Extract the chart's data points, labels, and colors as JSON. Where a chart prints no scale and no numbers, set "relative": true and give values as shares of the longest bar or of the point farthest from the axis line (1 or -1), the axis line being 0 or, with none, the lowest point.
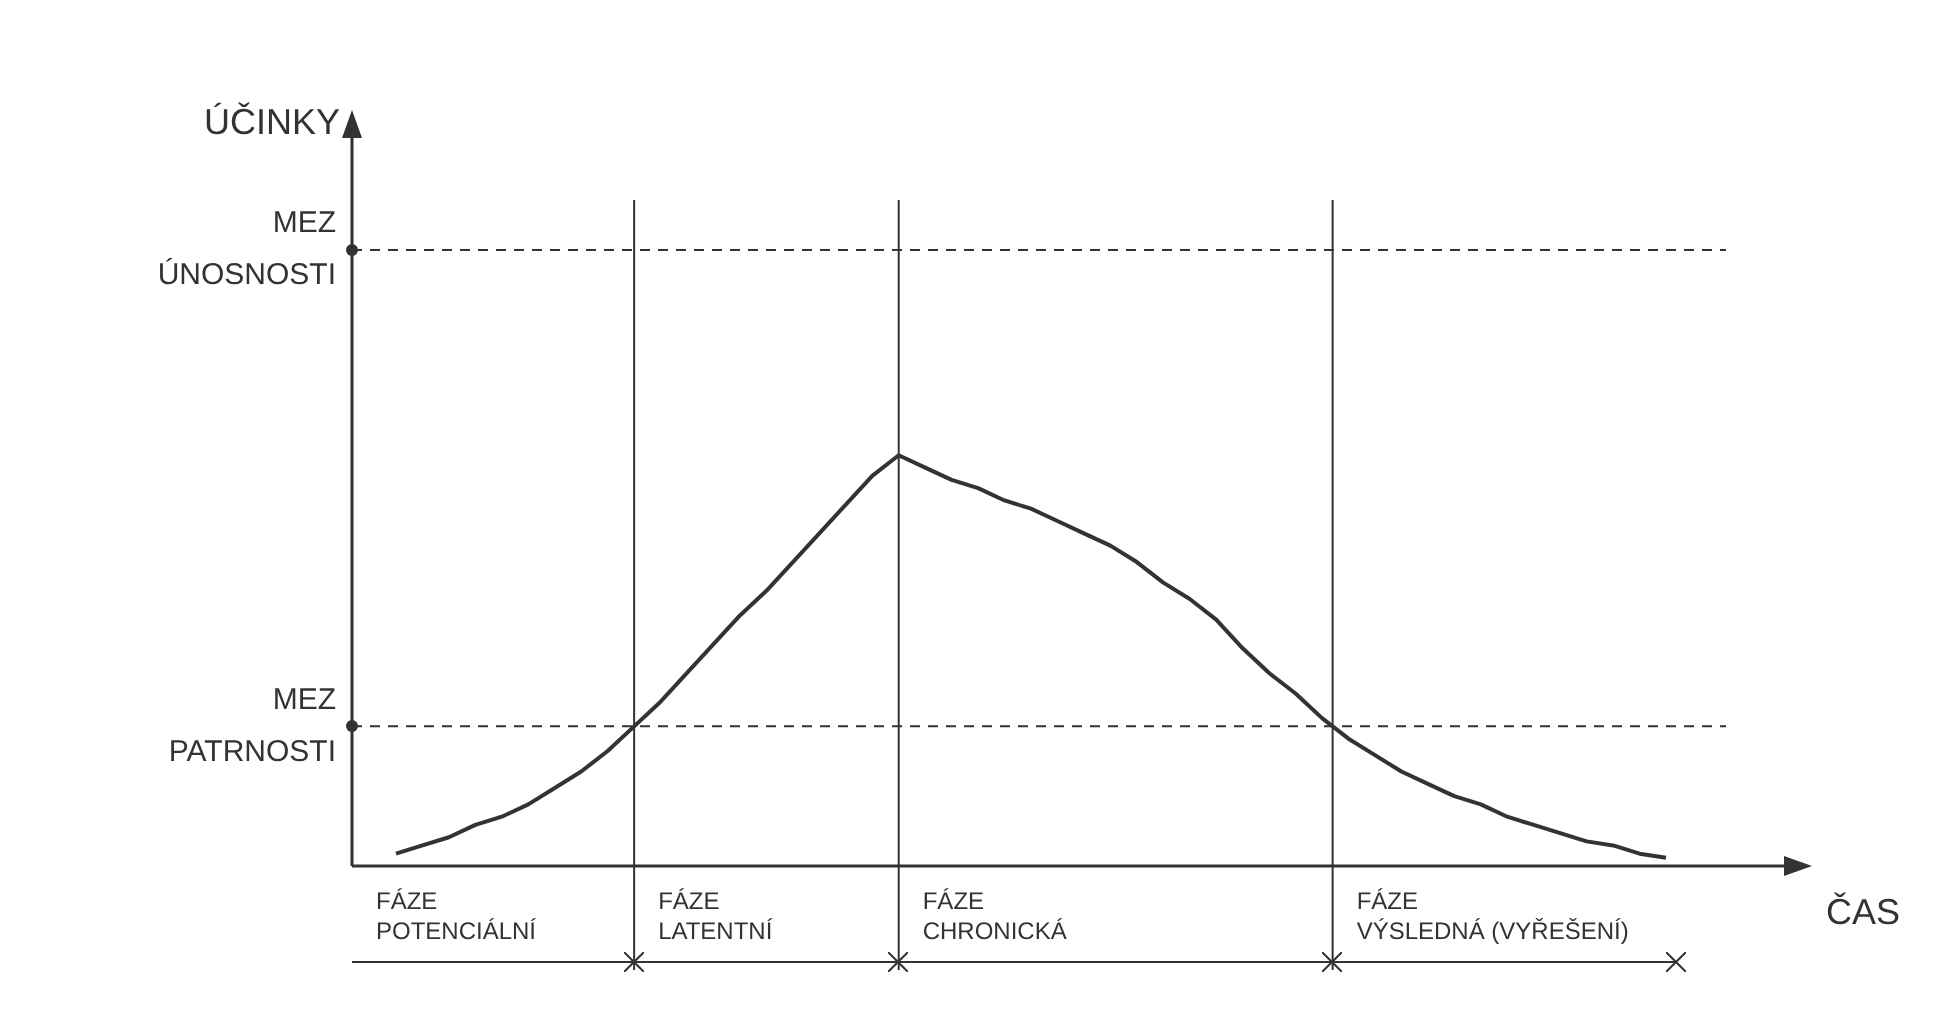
{
  "chart_data": {
    "type": "line",
    "relative": true,
    "xlabel": "ČAS",
    "categories": [
      null,
      null,
      null,
      null,
      null,
      null,
      null,
      null,
      null,
      null,
      null,
      null,
      null,
      null,
      null,
      null,
      null,
      null,
      null,
      null,
      null,
      null,
      null,
      null,
      null,
      null,
      null,
      null,
      null,
      null,
      null,
      null,
      null,
      null,
      null,
      null,
      null,
      null,
      null,
      null,
      null,
      null,
      null,
      null,
      null,
      null,
      null,
      null,
      null
    ],
    "values": [
      0.03,
      0.05,
      0.07,
      0.1,
      0.12,
      0.15,
      0.19,
      0.23,
      0.28,
      0.34,
      0.4,
      0.47,
      0.54,
      0.61,
      0.67,
      0.74,
      0.81,
      0.88,
      0.95,
      1,
      0.97,
      0.94,
      0.92,
      0.89,
      0.87,
      0.84,
      0.81,
      0.78,
      0.74,
      0.69,
      0.65,
      0.6,
      0.53,
      0.47,
      0.42,
      0.36,
      0.31,
      0.27,
      0.23,
      0.2,
      0.17,
      0.15,
      0.12,
      0.1,
      0.08,
      0.06,
      0.05,
      0.03,
      0.02
    ],
    "color": "#333333",
    "marker": "none",
    "line_style": "solid",
    "ref_lines": [
      {
        "axis": "y",
        "value": 1.5,
        "label": "MEZ ÚNOSNOSTI",
        "line_style": "dashed"
      },
      {
        "axis": "y",
        "value": 0.34,
        "label": "MEZ PATRNOSTI",
        "line_style": "dashed"
      }
    ],
    "annotations": [
      "ÚČINKY",
      "FÁZE POTENCIÁLNÍ",
      "FÁZE LATENTNÍ",
      "FÁZE CHRONICKÁ",
      "FÁZE VÝSLEDNÁ (VYŘEŠENÍ)"
    ]
  }
}
